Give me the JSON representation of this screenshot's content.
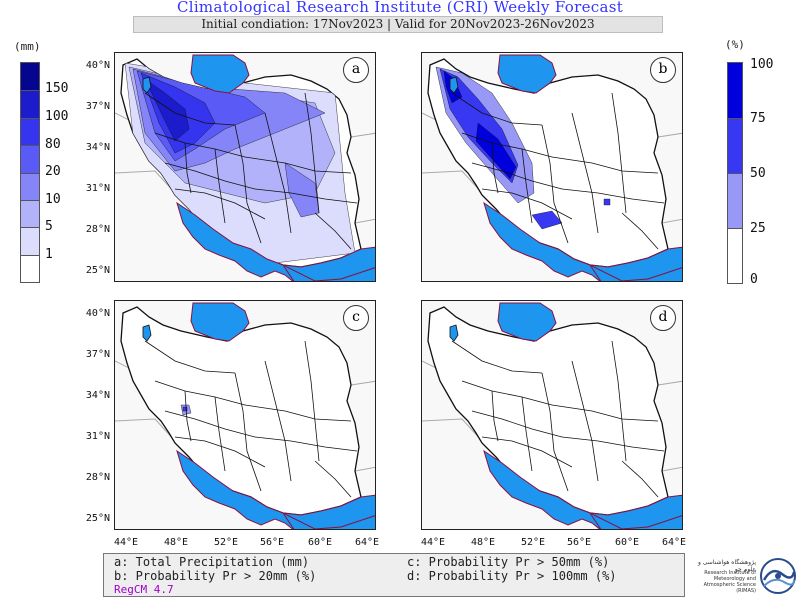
{
  "header": {
    "title": "Climatological Research Institute (CRI) Weekly Forecast",
    "subtitle": "Initial condiation: 17Nov2023 | Valid for 20Nov2023-26Nov2023"
  },
  "left_colorbar": {
    "unit": "(mm)",
    "levels": [
      "150",
      "100",
      "80",
      "20",
      "10",
      "5",
      "1"
    ],
    "colors": [
      "#05058f",
      "#1c1ccc",
      "#3535ef",
      "#5a5af7",
      "#8585f8",
      "#b2b2fb",
      "#dcdcfd",
      "#ffffff"
    ]
  },
  "right_colorbar": {
    "unit": "(%)",
    "levels": [
      "100",
      "75",
      "50",
      "25",
      "0"
    ],
    "colors": [
      "#0000dd",
      "#3838f2",
      "#9898f6",
      "#ffffff"
    ]
  },
  "panels": [
    {
      "label": "a"
    },
    {
      "label": "b"
    },
    {
      "label": "c"
    },
    {
      "label": "d"
    }
  ],
  "axes": {
    "lat_labels": [
      "40°N",
      "37°N",
      "34°N",
      "31°N",
      "28°N",
      "25°N"
    ],
    "lon_labels": [
      "44°E",
      "48°E",
      "52°E",
      "56°E",
      "60°E",
      "64°E"
    ]
  },
  "legend": {
    "a": "a: Total Precipitation (mm)",
    "b": "b: Probability Pr > 20mm (%)",
    "c": "c: Probability Pr > 50mm (%)",
    "d": "d: Probability Pr > 100mm (%)",
    "model": "RegCM 4.7"
  },
  "logo": {
    "name": "پژوهشگاه هواشناسی و علوم جو",
    "subtitle": "Research Institute of Meteorology and Atmospheric Science (RIMAS)"
  },
  "colors": {
    "water": "#1e96f0",
    "land_outside": "#f8f8f8",
    "iran": "#ffffff",
    "coast": "#8a1040"
  }
}
